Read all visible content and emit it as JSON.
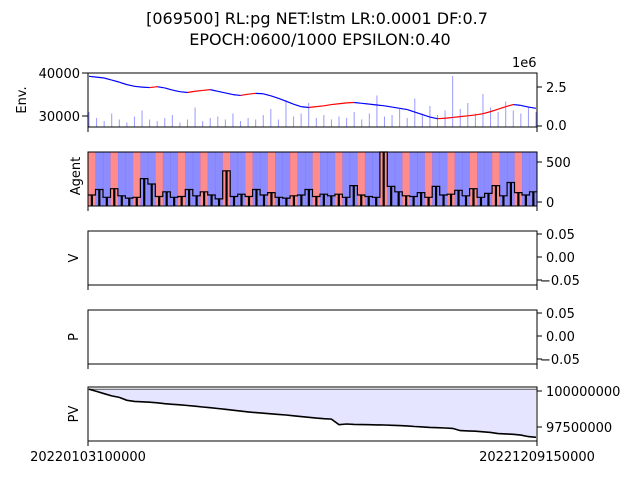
{
  "title_line1": "[069500] RL:pg NET:lstm LR:0.0001 DF:0.7",
  "title_line2": "EPOCH:0600/1000 EPSILON:0.40",
  "x_tick_labels": [
    "20220103100000",
    "20221209150000"
  ],
  "colors": {
    "price": "#000000",
    "buy": "#ff0000",
    "sell": "#0000ff",
    "volume": "#9999ff",
    "agent_buy": "#ff6666",
    "agent_sell": "#6666ff",
    "pv_fill": "#e5e5ff",
    "line": "#000000"
  },
  "chart_data": [
    {
      "type": "line",
      "panel": "env",
      "ylabel": "Env.",
      "left_ticks": [
        "40000",
        "30000"
      ],
      "right_ticks": [
        "2.5",
        "0.0"
      ],
      "right_offset_label": "1e6",
      "ylim_left": [
        27000,
        40000
      ],
      "ylim_right": [
        0,
        3600000
      ],
      "series": [
        {
          "role": "price",
          "values": [
            39200,
            39000,
            38800,
            38300,
            37800,
            37200,
            36800,
            36600,
            36500,
            36700,
            36400,
            35900,
            35500,
            35300,
            35600,
            35800,
            36000,
            35600,
            35200,
            34800,
            34600,
            34900,
            35100,
            35000,
            34500,
            33900,
            33200,
            32500,
            31900,
            31700,
            31900,
            32100,
            32400,
            32600,
            32800,
            32900,
            32700,
            32500,
            32300,
            32100,
            31800,
            31500,
            31200,
            30600,
            30000,
            29400,
            29000,
            29100,
            29300,
            29500,
            29700,
            29900,
            30200,
            30700,
            31300,
            31900,
            32400,
            32200,
            31800,
            31500
          ]
        },
        {
          "role": "volume",
          "values": [
            1.0,
            0.6,
            0.4,
            0.9,
            0.5,
            0.3,
            0.7,
            1.1,
            0.5,
            0.4,
            0.6,
            0.8,
            0.3,
            0.5,
            1.3,
            0.4,
            0.6,
            0.7,
            0.5,
            0.9,
            0.4,
            0.6,
            0.5,
            0.8,
            1.2,
            0.5,
            1.8,
            0.7,
            0.9,
            1.6,
            0.6,
            0.8,
            0.5,
            0.7,
            0.6,
            1.0,
            0.5,
            0.9,
            2.1,
            0.7,
            0.8,
            1.2,
            0.6,
            1.9,
            0.9,
            1.4,
            0.8,
            1.1,
            3.4,
            1.2,
            1.6,
            0.9,
            2.2,
            1.3,
            1.0,
            1.7,
            1.1,
            0.9,
            1.3,
            1.0
          ]
        }
      ]
    },
    {
      "type": "bar",
      "panel": "agent",
      "ylabel": "Agent",
      "right_ticks": [
        "500",
        "0"
      ],
      "ylim_right": [
        0,
        640
      ],
      "series": [
        {
          "role": "agent_units",
          "values": [
            90,
            160,
            60,
            170,
            80,
            50,
            60,
            300,
            230,
            70,
            130,
            60,
            70,
            160,
            80,
            130,
            90,
            40,
            400,
            70,
            100,
            70,
            160,
            90,
            120,
            60,
            50,
            80,
            90,
            160,
            70,
            100,
            80,
            100,
            60,
            210,
            90,
            70,
            60,
            640,
            200,
            130,
            80,
            70,
            120,
            60,
            200,
            90,
            100,
            150,
            80,
            170,
            60,
            110,
            210,
            80,
            250,
            120,
            90,
            130
          ]
        }
      ]
    },
    {
      "type": "line",
      "panel": "v",
      "ylabel": "V",
      "right_ticks": [
        "0.05",
        "0.00",
        "−0.05"
      ],
      "ylim_right": [
        -0.055,
        0.055
      ],
      "series": []
    },
    {
      "type": "line",
      "panel": "p",
      "ylabel": "P",
      "right_ticks": [
        "0.05",
        "0.00",
        "−0.05"
      ],
      "ylim_right": [
        -0.055,
        0.055
      ],
      "series": []
    },
    {
      "type": "area",
      "panel": "pv",
      "ylabel": "PV",
      "right_ticks": [
        "100000000",
        "97500000"
      ],
      "ylim_right": [
        96500000,
        100150000
      ],
      "baseline": 100000000,
      "series": [
        {
          "role": "portfolio_value",
          "values": [
            100000000,
            99850000,
            99700000,
            99550000,
            99450000,
            99250000,
            99180000,
            99150000,
            99120000,
            99080000,
            99020000,
            98980000,
            98950000,
            98900000,
            98850000,
            98800000,
            98750000,
            98700000,
            98640000,
            98580000,
            98520000,
            98470000,
            98420000,
            98380000,
            98340000,
            98300000,
            98260000,
            98200000,
            98150000,
            98100000,
            98050000,
            98010000,
            97980000,
            97600000,
            97650000,
            97620000,
            97610000,
            97600000,
            97590000,
            97580000,
            97560000,
            97540000,
            97520000,
            97480000,
            97450000,
            97420000,
            97400000,
            97380000,
            97350000,
            97200000,
            97180000,
            97160000,
            97120000,
            97080000,
            97000000,
            96980000,
            96950000,
            96900000,
            96800000,
            96750000
          ]
        }
      ]
    }
  ]
}
